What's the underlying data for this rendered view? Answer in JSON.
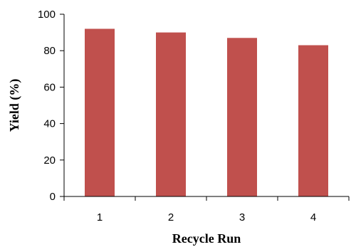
{
  "chart_data": {
    "type": "bar",
    "title": "",
    "xlabel": "Recycle Run",
    "ylabel": "Yield (%)",
    "categories": [
      "1",
      "2",
      "3",
      "4"
    ],
    "values": [
      92,
      90,
      87,
      83
    ],
    "ylim": [
      0,
      100
    ],
    "yticks": [
      "0",
      "20",
      "40",
      "60",
      "80",
      "100"
    ],
    "grid": false,
    "legend": "none",
    "bar_color": "#C0504D"
  }
}
